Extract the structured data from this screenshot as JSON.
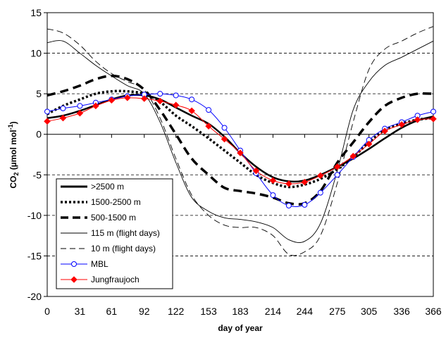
{
  "chart_data": {
    "type": "line",
    "xlabel": "day of year",
    "ylabel": "CO₂ (µmol mol⁻¹)",
    "ylabel_main": "CO",
    "ylabel_sub": "2",
    "ylabel_rest": " (µmol mol",
    "ylabel_sup": "-1",
    "ylabel_close": ")",
    "xlim": [
      0,
      366
    ],
    "ylim": [
      -20,
      15
    ],
    "x_ticks": [
      0,
      31,
      61,
      92,
      122,
      153,
      183,
      214,
      244,
      275,
      305,
      336,
      366
    ],
    "y_ticks": [
      -20,
      -15,
      -10,
      -5,
      0,
      5,
      10,
      15
    ],
    "gridlines_y": [
      -15,
      -10,
      -5,
      5,
      10
    ],
    "zero_line": 0,
    "legend_position": "bottom-left",
    "series": [
      {
        "name": ">2500 m",
        "color": "#000000",
        "style": "solid-thick",
        "x": [
          0,
          15,
          31,
          46,
          61,
          76,
          92,
          107,
          122,
          137,
          153,
          168,
          183,
          198,
          214,
          229,
          244,
          259,
          275,
          290,
          305,
          320,
          336,
          351,
          366
        ],
        "y": [
          2.0,
          2.3,
          2.9,
          3.6,
          4.3,
          4.8,
          4.8,
          4.3,
          3.3,
          2.3,
          1.3,
          -0.3,
          -2.3,
          -4.0,
          -5.3,
          -5.8,
          -5.7,
          -5.0,
          -4.0,
          -3.0,
          -1.8,
          -0.5,
          0.8,
          1.7,
          2.2
        ]
      },
      {
        "name": "1500-2500 m",
        "color": "#000000",
        "style": "dotted",
        "x": [
          0,
          15,
          31,
          46,
          61,
          76,
          92,
          107,
          122,
          137,
          153,
          168,
          183,
          198,
          214,
          229,
          244,
          259,
          275,
          290,
          305,
          320,
          336,
          351,
          366
        ],
        "y": [
          2.5,
          3.5,
          4.3,
          5.0,
          5.3,
          5.3,
          5.0,
          4.0,
          2.3,
          1.0,
          -0.5,
          -2.0,
          -3.5,
          -5.0,
          -6.0,
          -6.5,
          -6.2,
          -5.5,
          -4.3,
          -2.8,
          -1.0,
          0.5,
          1.3,
          1.8,
          2.0
        ]
      },
      {
        "name": "500-1500 m",
        "color": "#000000",
        "style": "dashed-thick",
        "x": [
          0,
          15,
          31,
          46,
          61,
          76,
          92,
          107,
          122,
          137,
          153,
          168,
          183,
          198,
          214,
          229,
          244,
          259,
          275,
          290,
          305,
          320,
          336,
          351,
          366
        ],
        "y": [
          4.8,
          5.3,
          6.0,
          6.8,
          7.2,
          6.8,
          5.5,
          3.0,
          0.0,
          -3.0,
          -5.0,
          -6.6,
          -7.0,
          -7.3,
          -7.8,
          -8.5,
          -8.5,
          -7.0,
          -3.5,
          -1.0,
          1.5,
          3.5,
          4.5,
          5.0,
          5.0
        ]
      },
      {
        "name": "115 m (flight days)",
        "color": "#000000",
        "style": "solid-thin",
        "x": [
          0,
          15,
          31,
          46,
          61,
          76,
          92,
          107,
          122,
          137,
          153,
          168,
          183,
          198,
          214,
          229,
          244,
          259,
          275,
          290,
          305,
          320,
          336,
          351,
          366
        ],
        "y": [
          11.3,
          11.5,
          10.0,
          8.5,
          7.2,
          6.0,
          5.0,
          1.5,
          -3.5,
          -7.8,
          -9.5,
          -10.3,
          -10.5,
          -10.8,
          -11.5,
          -13.0,
          -13.2,
          -11.0,
          -4.5,
          3.0,
          6.5,
          8.5,
          9.5,
          10.5,
          11.5
        ]
      },
      {
        "name": "10 m (flight days)",
        "color": "#000000",
        "style": "dashed-thin",
        "x": [
          0,
          15,
          31,
          46,
          61,
          76,
          92,
          107,
          122,
          137,
          153,
          168,
          183,
          198,
          214,
          229,
          244,
          259,
          275,
          290,
          305,
          320,
          336,
          351,
          366
        ],
        "y": [
          13.0,
          12.5,
          11.0,
          9.0,
          7.5,
          6.5,
          5.5,
          2.0,
          -3.0,
          -7.5,
          -10.0,
          -11.2,
          -11.5,
          -11.5,
          -12.5,
          -14.8,
          -14.5,
          -12.5,
          -6.0,
          1.5,
          8.0,
          10.5,
          11.5,
          12.5,
          13.3
        ]
      },
      {
        "name": "MBL",
        "color": "#0000ff",
        "style": "line-circle",
        "x": [
          0,
          15,
          31,
          46,
          61,
          76,
          92,
          107,
          122,
          137,
          153,
          168,
          183,
          198,
          214,
          229,
          244,
          259,
          275,
          290,
          305,
          320,
          336,
          351,
          366
        ],
        "y": [
          2.8,
          3.2,
          3.5,
          3.9,
          4.3,
          4.7,
          4.9,
          5.0,
          4.8,
          4.3,
          3.0,
          0.8,
          -2.0,
          -4.8,
          -7.5,
          -8.8,
          -8.7,
          -7.2,
          -5.0,
          -2.8,
          -0.7,
          0.7,
          1.5,
          2.3,
          2.8
        ]
      },
      {
        "name": "Jungfraujoch",
        "color": "#ff0000",
        "marker_color": "#ff0000",
        "style": "line-diamond",
        "x": [
          0,
          15,
          31,
          46,
          61,
          76,
          92,
          107,
          122,
          137,
          153,
          168,
          183,
          198,
          214,
          229,
          244,
          259,
          275,
          290,
          305,
          320,
          336,
          351,
          366
        ],
        "y": [
          1.6,
          2.0,
          2.6,
          3.5,
          4.2,
          4.5,
          4.4,
          4.1,
          3.6,
          2.9,
          1.0,
          -0.6,
          -2.3,
          -4.5,
          -5.7,
          -6.1,
          -5.9,
          -5.1,
          -4.0,
          -2.7,
          -1.2,
          0.4,
          1.2,
          1.8,
          1.9
        ]
      }
    ]
  }
}
